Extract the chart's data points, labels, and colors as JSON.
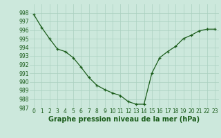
{
  "x": [
    0,
    1,
    2,
    3,
    4,
    5,
    6,
    7,
    8,
    9,
    10,
    11,
    12,
    13,
    14,
    15,
    16,
    17,
    18,
    19,
    20,
    21,
    22,
    23
  ],
  "y": [
    997.8,
    996.3,
    995.0,
    993.8,
    993.5,
    992.8,
    991.7,
    990.5,
    989.6,
    989.1,
    988.7,
    988.4,
    987.7,
    987.4,
    987.4,
    991.0,
    992.8,
    993.5,
    994.1,
    995.0,
    995.4,
    995.9,
    996.1,
    996.1
  ],
  "line_color": "#1a5c1a",
  "marker": "+",
  "marker_color": "#1a5c1a",
  "bg_color": "#cce8dc",
  "grid_color": "#aad0c0",
  "xlabel": "Graphe pression niveau de la mer (hPa)",
  "xlabel_color": "#1a5c1a",
  "tick_color": "#1a5c1a",
  "ylim": [
    987,
    999
  ],
  "xlim_min": -0.5,
  "xlim_max": 23.5,
  "yticks": [
    987,
    988,
    989,
    990,
    991,
    992,
    993,
    994,
    995,
    996,
    997,
    998
  ],
  "xticks": [
    0,
    1,
    2,
    3,
    4,
    5,
    6,
    7,
    8,
    9,
    10,
    11,
    12,
    13,
    14,
    15,
    16,
    17,
    18,
    19,
    20,
    21,
    22,
    23
  ],
  "tick_fontsize": 5.5,
  "xlabel_fontsize": 7.0,
  "linewidth": 0.9,
  "markersize": 3.5,
  "markeredgewidth": 0.9
}
